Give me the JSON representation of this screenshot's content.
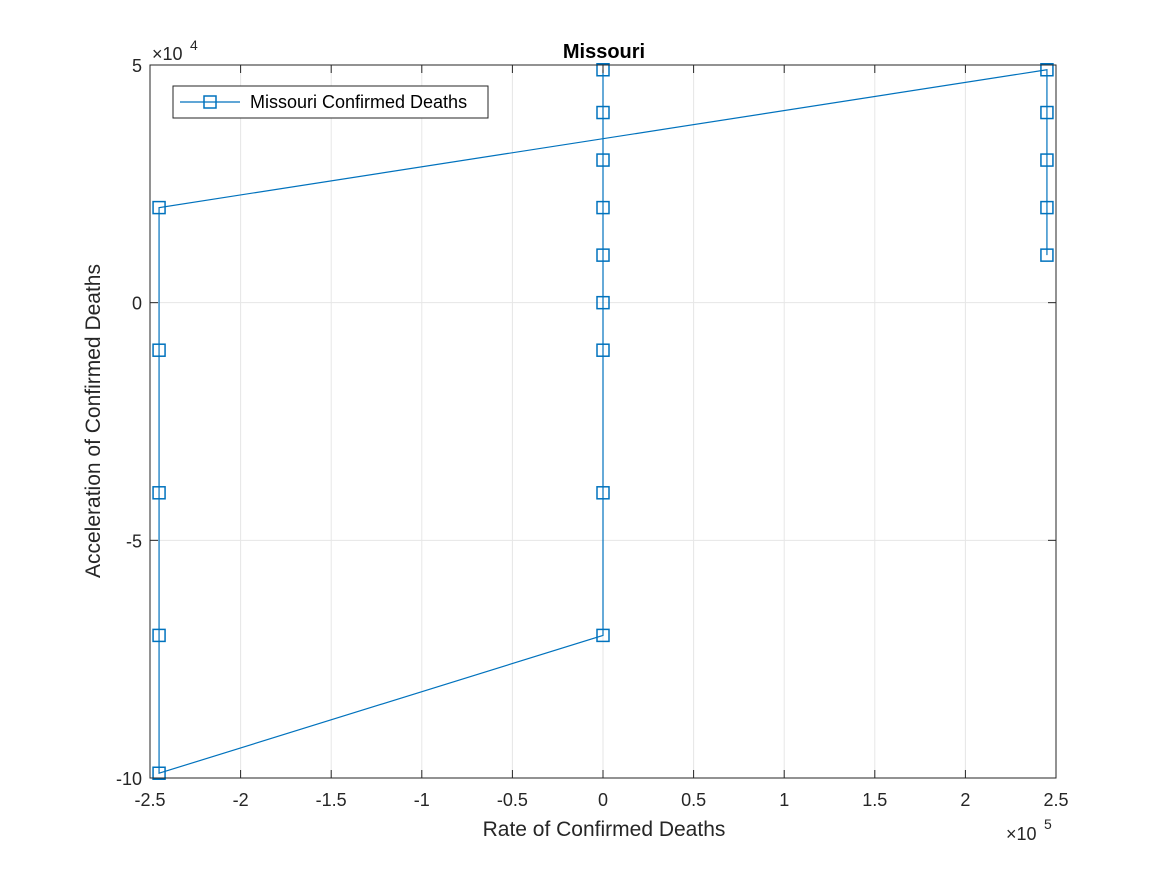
{
  "chart_data": {
    "type": "line",
    "title": "Missouri",
    "xlabel": "Rate of Confirmed Deaths",
    "ylabel": "Acceleration of Confirmed Deaths",
    "xlim": [
      -250000,
      250000
    ],
    "ylim": [
      -100000,
      50000
    ],
    "x_exponent_label": "×10",
    "x_exponent": "5",
    "y_exponent_label": "×10",
    "y_exponent": "4",
    "x_ticks": [
      -250000,
      -200000,
      -150000,
      -100000,
      -50000,
      0,
      50000,
      100000,
      150000,
      200000,
      250000
    ],
    "x_tick_labels": [
      "-2.5",
      "-2",
      "-1.5",
      "-1",
      "-0.5",
      "0",
      "0.5",
      "1",
      "1.5",
      "2",
      "2.5"
    ],
    "y_ticks": [
      -100000,
      -50000,
      0,
      50000
    ],
    "y_tick_labels": [
      "-10",
      "-5",
      "0",
      "5"
    ],
    "grid": true,
    "legend_position": "top-left",
    "series": [
      {
        "name": "Missouri Confirmed Deaths",
        "color": "#0072BD",
        "marker": "square",
        "x": [
          245000,
          245000,
          245000,
          245000,
          245000,
          -245000,
          -245000,
          -245000,
          -245000,
          -245000,
          0,
          0,
          0,
          0,
          0,
          0,
          0,
          0,
          0
        ],
        "y": [
          10000,
          20000,
          30000,
          40000,
          49000,
          20000,
          -10000,
          -40000,
          -70000,
          -99000,
          -70000,
          -40000,
          -10000,
          0,
          10000,
          20000,
          30000,
          40000,
          49000
        ]
      }
    ]
  }
}
